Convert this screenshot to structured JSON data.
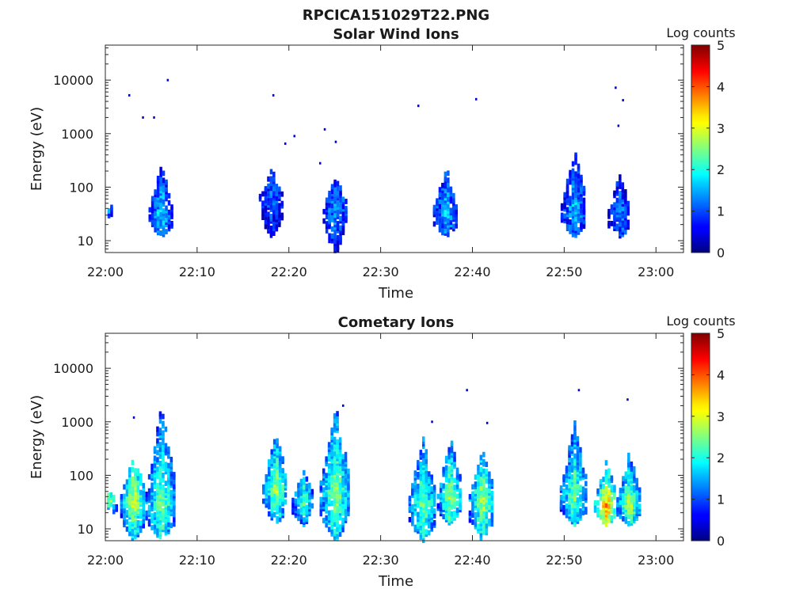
{
  "figure_title": "RPCICA151029T22.PNG",
  "colormap": "jet",
  "chart_data": [
    {
      "type": "heatmap",
      "title": "Solar Wind Ions",
      "xlabel": "Time",
      "ylabel": "Energy (eV)",
      "x_scale": "time",
      "y_scale": "log",
      "xlim": [
        "22:00",
        "23:03"
      ],
      "ylim": [
        6,
        45000
      ],
      "x_ticks": [
        "22:00",
        "22:10",
        "22:20",
        "22:30",
        "22:40",
        "22:50",
        "23:00"
      ],
      "y_ticks": [
        "10",
        "100",
        "1000",
        "10000"
      ],
      "colorbar": {
        "label": "Log counts",
        "range": [
          0,
          5
        ],
        "ticks": [
          "0",
          "1",
          "2",
          "3",
          "4",
          "5"
        ]
      },
      "bursts": [
        {
          "t": "22:00",
          "e_min": 28,
          "e_max": 45,
          "e_peak": 40,
          "level": 1.6
        },
        {
          "t": "22:06",
          "e_min": 12,
          "e_max": 260,
          "e_peak": 35,
          "level": 1.8
        },
        {
          "t": "22:18",
          "e_min": 12,
          "e_max": 220,
          "e_peak": 60,
          "level": 1.2
        },
        {
          "t": "22:25",
          "e_min": 6,
          "e_max": 150,
          "e_peak": 40,
          "level": 1.5
        },
        {
          "t": "22:37",
          "e_min": 12,
          "e_max": 250,
          "e_peak": 35,
          "level": 1.7
        },
        {
          "t": "22:51",
          "e_min": 12,
          "e_max": 500,
          "e_peak": 40,
          "level": 1.6
        },
        {
          "t": "22:56",
          "e_min": 12,
          "e_max": 200,
          "e_peak": 30,
          "level": 1.4
        }
      ],
      "isolated_points": [
        {
          "t": "22:02.5",
          "e": 5200
        },
        {
          "t": "22:04",
          "e": 2000
        },
        {
          "t": "22:05.2",
          "e": 2000
        },
        {
          "t": "22:06.7",
          "e": 10000
        },
        {
          "t": "22:18.2",
          "e": 5200
        },
        {
          "t": "22:19.5",
          "e": 650
        },
        {
          "t": "22:20.5",
          "e": 900
        },
        {
          "t": "22:23.8",
          "e": 1200
        },
        {
          "t": "22:25",
          "e": 700
        },
        {
          "t": "22:23.3",
          "e": 280
        },
        {
          "t": "22:34",
          "e": 3300
        },
        {
          "t": "22:40.3",
          "e": 4400
        },
        {
          "t": "22:55.5",
          "e": 7200
        },
        {
          "t": "22:56.3",
          "e": 4200
        },
        {
          "t": "22:55.8",
          "e": 1400
        }
      ]
    },
    {
      "type": "heatmap",
      "title": "Cometary Ions",
      "xlabel": "Time",
      "ylabel": "Energy (eV)",
      "x_scale": "time",
      "y_scale": "log",
      "xlim": [
        "22:00",
        "23:03"
      ],
      "ylim": [
        6,
        45000
      ],
      "x_ticks": [
        "22:00",
        "22:10",
        "22:20",
        "22:30",
        "22:40",
        "22:50",
        "23:00"
      ],
      "y_ticks": [
        "10",
        "100",
        "1000",
        "10000"
      ],
      "colorbar": {
        "label": "Log counts",
        "range": [
          0,
          5
        ],
        "ticks": [
          "0",
          "1",
          "2",
          "3",
          "4",
          "5"
        ]
      },
      "bursts": [
        {
          "t": "22:00.3",
          "e_min": 18,
          "e_max": 45,
          "e_peak": 35,
          "level": 2.8
        },
        {
          "t": "22:03",
          "e_min": 6,
          "e_max": 250,
          "e_peak": 35,
          "level": 3.0
        },
        {
          "t": "22:06",
          "e_min": 6,
          "e_max": 2000,
          "e_peak": 35,
          "level": 2.5
        },
        {
          "t": "22:18.5",
          "e_min": 12,
          "e_max": 600,
          "e_peak": 60,
          "level": 2.8
        },
        {
          "t": "22:21.5",
          "e_min": 12,
          "e_max": 120,
          "e_peak": 35,
          "level": 2.3
        },
        {
          "t": "22:25",
          "e_min": 6,
          "e_max": 2000,
          "e_peak": 50,
          "level": 2.7
        },
        {
          "t": "22:34.5",
          "e_min": 6,
          "e_max": 500,
          "e_peak": 30,
          "level": 2.6
        },
        {
          "t": "22:37.5",
          "e_min": 12,
          "e_max": 500,
          "e_peak": 40,
          "level": 2.8
        },
        {
          "t": "22:41",
          "e_min": 6,
          "e_max": 300,
          "e_peak": 35,
          "level": 2.9
        },
        {
          "t": "22:51",
          "e_min": 12,
          "e_max": 1000,
          "e_peak": 45,
          "level": 2.5
        },
        {
          "t": "22:54.5",
          "e_min": 12,
          "e_max": 200,
          "e_peak": 28,
          "level": 3.8
        },
        {
          "t": "22:57",
          "e_min": 12,
          "e_max": 300,
          "e_peak": 30,
          "level": 2.8
        }
      ],
      "isolated_points": [
        {
          "t": "22:03",
          "e": 1200
        },
        {
          "t": "22:25.8",
          "e": 2000
        },
        {
          "t": "22:35.5",
          "e": 1000
        },
        {
          "t": "22:39.3",
          "e": 3900
        },
        {
          "t": "22:41.5",
          "e": 950
        },
        {
          "t": "22:51.5",
          "e": 3900
        },
        {
          "t": "22:56.8",
          "e": 2600
        }
      ]
    }
  ]
}
